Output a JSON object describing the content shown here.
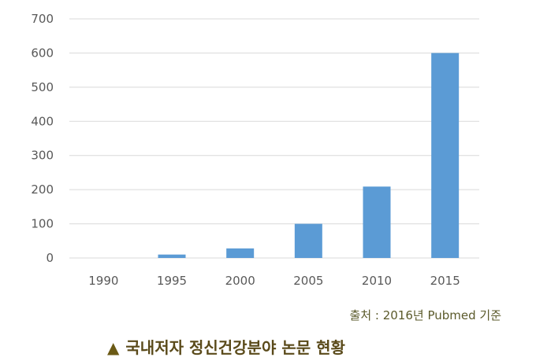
{
  "chart_data": {
    "type": "bar",
    "categories": [
      "1990",
      "1995",
      "2000",
      "2005",
      "2010",
      "2015"
    ],
    "values": [
      0,
      10,
      28,
      100,
      209,
      600
    ],
    "title": "",
    "xlabel": "",
    "ylabel": "",
    "ylim": [
      0,
      700
    ],
    "yticks": [
      0,
      100,
      200,
      300,
      400,
      500,
      600,
      700
    ],
    "grid": true,
    "bar_color": "#5b9bd5",
    "grid_color": "#d9d9d9"
  },
  "source_text": "출처 : 2016년 Pubmed 기준",
  "caption": {
    "marker": "▲",
    "text": "국내저자 정신건강분야 논문 현황"
  }
}
